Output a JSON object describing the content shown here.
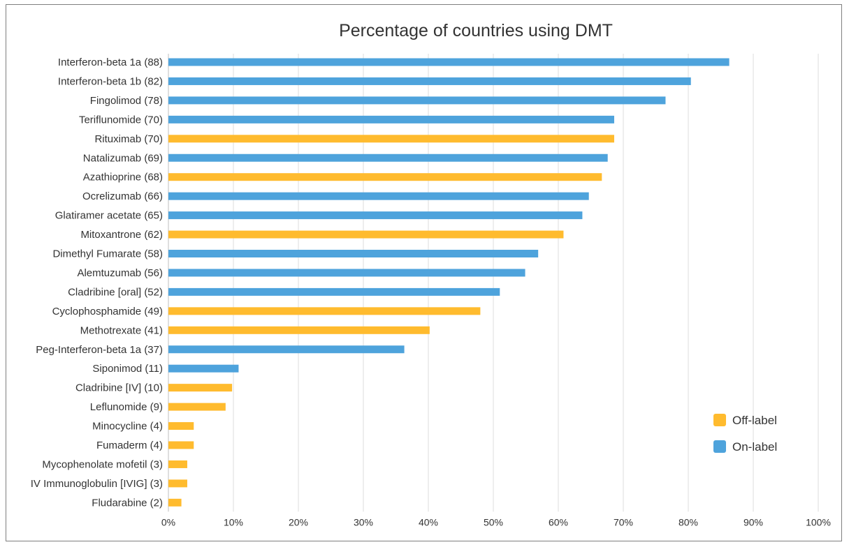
{
  "chart_data": {
    "type": "bar",
    "orientation": "horizontal",
    "title": "Percentage of countries using DMT",
    "xlabel": "",
    "ylabel": "",
    "xlim": [
      0,
      100
    ],
    "x_ticks": [
      "0%",
      "10%",
      "20%",
      "30%",
      "40%",
      "50%",
      "60%",
      "70%",
      "80%",
      "90%",
      "100%"
    ],
    "grid": "vertical",
    "legend_position": "right",
    "colors": {
      "Off-label": "#FFBB2E",
      "On-label": "#4EA3DC"
    },
    "legend": [
      {
        "name": "Off-label",
        "color": "#FFBB2E"
      },
      {
        "name": "On-label",
        "color": "#4EA3DC"
      }
    ],
    "categories": [
      "Interferon-beta 1a (88)",
      "Interferon-beta 1b (82)",
      "Fingolimod (78)",
      "Teriflunomide (70)",
      "Rituximab (70)",
      "Natalizumab (69)",
      "Azathioprine (68)",
      "Ocrelizumab (66)",
      "Glatiramer acetate (65)",
      "Mitoxantrone (62)",
      "Dimethyl Fumarate (58)",
      "Alemtuzumab (56)",
      "Cladribine [oral] (52)",
      "Cyclophosphamide (49)",
      "Methotrexate (41)",
      "Peg-Interferon-beta 1a (37)",
      "Siponimod (11)",
      "Cladribine [IV] (10)",
      "Leflunomide (9)",
      "Minocycline (4)",
      "Fumaderm (4)",
      "Mycophenolate mofetil (3)",
      "IV Immunoglobulin [IVIG] (3)",
      "Fludarabine (2)"
    ],
    "values": [
      86.3,
      80.4,
      76.5,
      68.6,
      68.6,
      67.6,
      66.7,
      64.7,
      63.7,
      60.8,
      56.9,
      54.9,
      51.0,
      48.0,
      40.2,
      36.3,
      10.8,
      9.8,
      8.8,
      3.9,
      3.9,
      2.9,
      2.9,
      2.0
    ],
    "label_type": [
      "On-label",
      "On-label",
      "On-label",
      "On-label",
      "Off-label",
      "On-label",
      "Off-label",
      "On-label",
      "On-label",
      "Off-label",
      "On-label",
      "On-label",
      "On-label",
      "Off-label",
      "Off-label",
      "On-label",
      "On-label",
      "Off-label",
      "Off-label",
      "Off-label",
      "Off-label",
      "Off-label",
      "Off-label",
      "Off-label"
    ]
  }
}
